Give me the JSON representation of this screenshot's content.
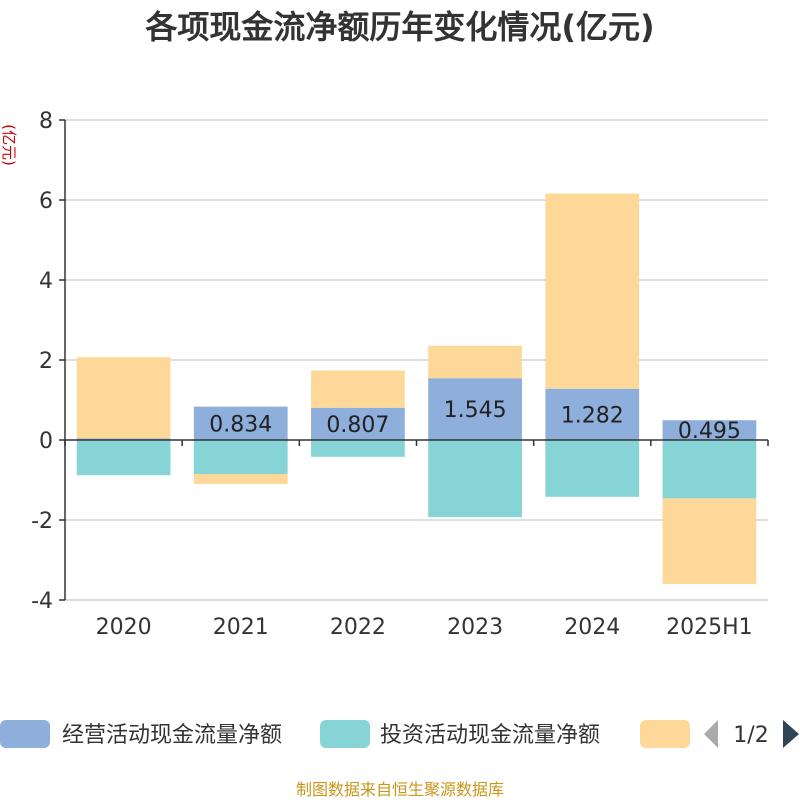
{
  "chart_data": {
    "type": "bar",
    "stacked": true,
    "title": "各项现金流净额历年变化情况(亿元)",
    "ylabel": "(亿元)",
    "xlabel": "",
    "categories": [
      "2020",
      "2021",
      "2022",
      "2023",
      "2024",
      "2025H1"
    ],
    "ylim": [
      -4,
      8
    ],
    "yticks": [
      -4,
      -2,
      0,
      2,
      4,
      6,
      8
    ],
    "grid": true,
    "series": [
      {
        "name": "经营活动现金流量净额",
        "color": "#8eaedb",
        "values": [
          0.04,
          0.834,
          0.807,
          1.545,
          1.282,
          0.495
        ],
        "labels": [
          "",
          "0.834",
          "0.807",
          "1.545",
          "1.282",
          "0.495"
        ]
      },
      {
        "name": "投资活动现金流量净额",
        "color": "#86d4d6",
        "values": [
          -0.88,
          -0.85,
          -0.42,
          -1.93,
          -1.42,
          -1.46
        ]
      },
      {
        "name": "",
        "color": "#fed899",
        "values": [
          2.03,
          -0.25,
          0.93,
          0.81,
          4.88,
          -2.14
        ]
      }
    ]
  },
  "legend": {
    "page_indicator": "1/2",
    "prev_icon": "triangle-left-icon",
    "next_icon": "triangle-right-icon"
  },
  "source": "制图数据来自恒生聚源数据库"
}
